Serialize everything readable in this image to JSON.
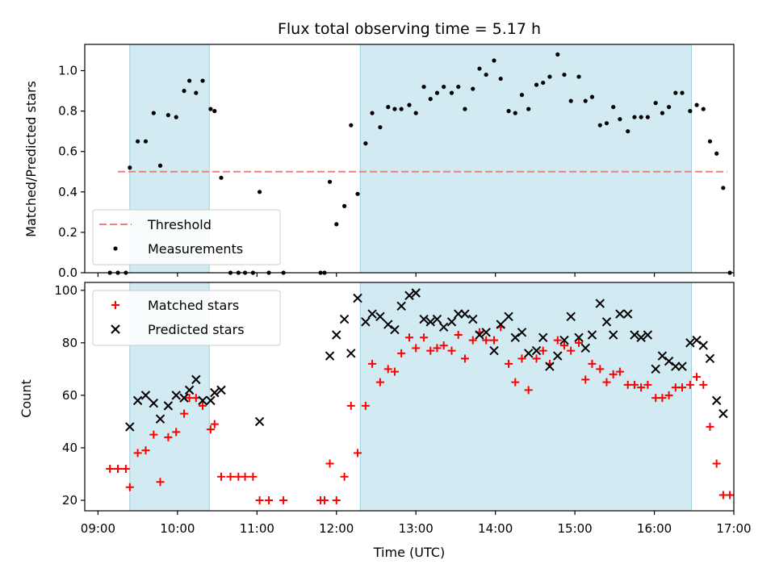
{
  "chart_data": [
    {
      "type": "scatter",
      "title": "Flux total observing time = 5.17 h",
      "xlabel": "",
      "ylabel": "Matched/Predicted stars",
      "xlim": [
        "08:50",
        "17:00"
      ],
      "ylim": [
        0,
        1.13
      ],
      "y_ticks": [
        "0.0",
        "0.2",
        "0.4",
        "0.6",
        "0.8",
        "1.0"
      ],
      "threshold": {
        "label": "Threshold",
        "value": 0.5,
        "x_range": [
          "09:15",
          "16:55"
        ],
        "color": "#f08080",
        "style": "dashed"
      },
      "shaded_intervals": [
        [
          "09:24",
          "10:24"
        ],
        [
          "12:18",
          "16:28"
        ]
      ],
      "shade_color": "#add8e6",
      "legend": {
        "position": "lower-left",
        "entries": [
          "Threshold",
          "Measurements"
        ]
      },
      "series": [
        {
          "name": "Measurements",
          "marker": "dot",
          "color": "#000000",
          "points": [
            [
              "09:09",
              0
            ],
            [
              "09:15",
              0
            ],
            [
              "09:21",
              0
            ],
            [
              "09:24",
              0.52
            ],
            [
              "09:30",
              0.65
            ],
            [
              "09:36",
              0.65
            ],
            [
              "09:42",
              0.79
            ],
            [
              "09:47",
              0.53
            ],
            [
              "09:53",
              0.78
            ],
            [
              "09:59",
              0.77
            ],
            [
              "10:05",
              0.9
            ],
            [
              "10:09",
              0.95
            ],
            [
              "10:14",
              0.89
            ],
            [
              "10:19",
              0.95
            ],
            [
              "10:25",
              0.81
            ],
            [
              "10:28",
              0.8
            ],
            [
              "10:33",
              0.47
            ],
            [
              "10:40",
              0
            ],
            [
              "10:46",
              0
            ],
            [
              "10:51",
              0
            ],
            [
              "10:57",
              0
            ],
            [
              "11:02",
              0.4
            ],
            [
              "11:09",
              0
            ],
            [
              "11:20",
              0
            ],
            [
              "11:48",
              0
            ],
            [
              "11:51",
              0
            ],
            [
              "11:55",
              0.45
            ],
            [
              "12:00",
              0.24
            ],
            [
              "12:06",
              0.33
            ],
            [
              "12:11",
              0.73
            ],
            [
              "12:16",
              0.39
            ],
            [
              "12:22",
              0.64
            ],
            [
              "12:27",
              0.79
            ],
            [
              "12:33",
              0.72
            ],
            [
              "12:39",
              0.82
            ],
            [
              "12:44",
              0.81
            ],
            [
              "12:49",
              0.81
            ],
            [
              "12:55",
              0.83
            ],
            [
              "13:00",
              0.79
            ],
            [
              "13:06",
              0.92
            ],
            [
              "13:11",
              0.86
            ],
            [
              "13:16",
              0.89
            ],
            [
              "13:21",
              0.92
            ],
            [
              "13:27",
              0.89
            ],
            [
              "13:32",
              0.92
            ],
            [
              "13:37",
              0.81
            ],
            [
              "13:43",
              0.91
            ],
            [
              "13:48",
              1.01
            ],
            [
              "13:53",
              0.98
            ],
            [
              "13:59",
              1.05
            ],
            [
              "14:04",
              0.96
            ],
            [
              "14:10",
              0.8
            ],
            [
              "14:15",
              0.79
            ],
            [
              "14:20",
              0.88
            ],
            [
              "14:25",
              0.81
            ],
            [
              "14:31",
              0.93
            ],
            [
              "14:36",
              0.94
            ],
            [
              "14:41",
              0.97
            ],
            [
              "14:47",
              1.08
            ],
            [
              "14:52",
              0.98
            ],
            [
              "14:57",
              0.85
            ],
            [
              "15:03",
              0.97
            ],
            [
              "15:08",
              0.85
            ],
            [
              "15:13",
              0.87
            ],
            [
              "15:19",
              0.73
            ],
            [
              "15:24",
              0.74
            ],
            [
              "15:29",
              0.82
            ],
            [
              "15:34",
              0.76
            ],
            [
              "15:40",
              0.7
            ],
            [
              "15:45",
              0.77
            ],
            [
              "15:50",
              0.77
            ],
            [
              "15:55",
              0.77
            ],
            [
              "16:01",
              0.84
            ],
            [
              "16:06",
              0.79
            ],
            [
              "16:11",
              0.82
            ],
            [
              "16:16",
              0.89
            ],
            [
              "16:21",
              0.89
            ],
            [
              "16:27",
              0.8
            ],
            [
              "16:32",
              0.83
            ],
            [
              "16:37",
              0.81
            ],
            [
              "16:42",
              0.65
            ],
            [
              "16:47",
              0.59
            ],
            [
              "16:52",
              0.42
            ],
            [
              "16:57",
              0
            ]
          ]
        }
      ]
    },
    {
      "type": "scatter",
      "title": "",
      "xlabel": "Time (UTC)",
      "ylabel": "Count",
      "xlim": [
        "08:50",
        "17:00"
      ],
      "ylim": [
        16,
        103
      ],
      "y_ticks": [
        "20",
        "40",
        "60",
        "80",
        "100"
      ],
      "x_ticks": [
        "09:00",
        "10:00",
        "11:00",
        "12:00",
        "13:00",
        "14:00",
        "15:00",
        "16:00",
        "17:00"
      ],
      "shaded_intervals": [
        [
          "09:24",
          "10:24"
        ],
        [
          "12:18",
          "16:28"
        ]
      ],
      "shade_color": "#add8e6",
      "legend": {
        "position": "upper-left",
        "entries": [
          "Matched stars",
          "Predicted stars"
        ]
      },
      "series": [
        {
          "name": "Matched stars",
          "marker": "plus",
          "color": "#ff0000",
          "points": [
            [
              "09:09",
              32
            ],
            [
              "09:15",
              32
            ],
            [
              "09:21",
              32
            ],
            [
              "09:24",
              25
            ],
            [
              "09:30",
              38
            ],
            [
              "09:36",
              39
            ],
            [
              "09:42",
              45
            ],
            [
              "09:47",
              27
            ],
            [
              "09:53",
              44
            ],
            [
              "09:59",
              46
            ],
            [
              "10:05",
              53
            ],
            [
              "10:09",
              59
            ],
            [
              "10:14",
              59
            ],
            [
              "10:19",
              56
            ],
            [
              "10:25",
              47
            ],
            [
              "10:28",
              49
            ],
            [
              "10:33",
              29
            ],
            [
              "10:40",
              29
            ],
            [
              "10:46",
              29
            ],
            [
              "10:51",
              29
            ],
            [
              "10:57",
              29
            ],
            [
              "11:02",
              20
            ],
            [
              "11:09",
              20
            ],
            [
              "11:20",
              20
            ],
            [
              "11:48",
              20
            ],
            [
              "11:51",
              20
            ],
            [
              "11:55",
              34
            ],
            [
              "12:00",
              20
            ],
            [
              "12:06",
              29
            ],
            [
              "12:11",
              56
            ],
            [
              "12:16",
              38
            ],
            [
              "12:22",
              56
            ],
            [
              "12:27",
              72
            ],
            [
              "12:33",
              65
            ],
            [
              "12:39",
              70
            ],
            [
              "12:44",
              69
            ],
            [
              "12:49",
              76
            ],
            [
              "12:55",
              82
            ],
            [
              "13:00",
              78
            ],
            [
              "13:06",
              82
            ],
            [
              "13:11",
              77
            ],
            [
              "13:16",
              78
            ],
            [
              "13:21",
              79
            ],
            [
              "13:27",
              77
            ],
            [
              "13:32",
              83
            ],
            [
              "13:37",
              74
            ],
            [
              "13:43",
              81
            ],
            [
              "13:48",
              84
            ],
            [
              "13:53",
              81
            ],
            [
              "13:59",
              81
            ],
            [
              "14:04",
              86
            ],
            [
              "14:10",
              72
            ],
            [
              "14:15",
              65
            ],
            [
              "14:20",
              74
            ],
            [
              "14:25",
              62
            ],
            [
              "14:31",
              74
            ],
            [
              "14:36",
              77
            ],
            [
              "14:41",
              72
            ],
            [
              "14:47",
              81
            ],
            [
              "14:52",
              79
            ],
            [
              "14:57",
              77
            ],
            [
              "15:03",
              80
            ],
            [
              "15:08",
              66
            ],
            [
              "15:13",
              72
            ],
            [
              "15:19",
              70
            ],
            [
              "15:24",
              65
            ],
            [
              "15:29",
              68
            ],
            [
              "15:34",
              69
            ],
            [
              "15:40",
              64
            ],
            [
              "15:45",
              64
            ],
            [
              "15:50",
              63
            ],
            [
              "15:55",
              64
            ],
            [
              "16:01",
              59
            ],
            [
              "16:06",
              59
            ],
            [
              "16:11",
              60
            ],
            [
              "16:16",
              63
            ],
            [
              "16:21",
              63
            ],
            [
              "16:27",
              64
            ],
            [
              "16:32",
              67
            ],
            [
              "16:37",
              64
            ],
            [
              "16:42",
              48
            ],
            [
              "16:47",
              34
            ],
            [
              "16:52",
              22
            ],
            [
              "16:57",
              22
            ]
          ]
        },
        {
          "name": "Predicted stars",
          "marker": "cross",
          "color": "#000000",
          "points": [
            [
              "09:24",
              48
            ],
            [
              "09:30",
              58
            ],
            [
              "09:36",
              60
            ],
            [
              "09:42",
              57
            ],
            [
              "09:47",
              51
            ],
            [
              "09:53",
              56
            ],
            [
              "09:59",
              60
            ],
            [
              "10:05",
              59
            ],
            [
              "10:09",
              62
            ],
            [
              "10:14",
              66
            ],
            [
              "10:19",
              58
            ],
            [
              "10:25",
              58
            ],
            [
              "10:28",
              61
            ],
            [
              "10:33",
              62
            ],
            [
              "11:02",
              50
            ],
            [
              "11:55",
              75
            ],
            [
              "12:00",
              83
            ],
            [
              "12:06",
              89
            ],
            [
              "12:11",
              76
            ],
            [
              "12:16",
              97
            ],
            [
              "12:22",
              88
            ],
            [
              "12:27",
              91
            ],
            [
              "12:33",
              90
            ],
            [
              "12:39",
              87
            ],
            [
              "12:44",
              85
            ],
            [
              "12:49",
              94
            ],
            [
              "12:55",
              98
            ],
            [
              "13:00",
              99
            ],
            [
              "13:06",
              89
            ],
            [
              "13:11",
              88
            ],
            [
              "13:16",
              89
            ],
            [
              "13:21",
              86
            ],
            [
              "13:27",
              88
            ],
            [
              "13:32",
              91
            ],
            [
              "13:37",
              91
            ],
            [
              "13:43",
              89
            ],
            [
              "13:48",
              83
            ],
            [
              "13:53",
              84
            ],
            [
              "13:59",
              77
            ],
            [
              "14:04",
              87
            ],
            [
              "14:10",
              90
            ],
            [
              "14:15",
              82
            ],
            [
              "14:20",
              84
            ],
            [
              "14:25",
              76
            ],
            [
              "14:31",
              77
            ],
            [
              "14:36",
              82
            ],
            [
              "14:41",
              71
            ],
            [
              "14:47",
              75
            ],
            [
              "14:52",
              81
            ],
            [
              "14:57",
              90
            ],
            [
              "15:03",
              82
            ],
            [
              "15:08",
              78
            ],
            [
              "15:13",
              83
            ],
            [
              "15:19",
              95
            ],
            [
              "15:24",
              88
            ],
            [
              "15:29",
              83
            ],
            [
              "15:34",
              91
            ],
            [
              "15:40",
              91
            ],
            [
              "15:45",
              83
            ],
            [
              "15:50",
              82
            ],
            [
              "15:55",
              83
            ],
            [
              "16:01",
              70
            ],
            [
              "16:06",
              75
            ],
            [
              "16:11",
              73
            ],
            [
              "16:16",
              71
            ],
            [
              "16:21",
              71
            ],
            [
              "16:27",
              80
            ],
            [
              "16:32",
              81
            ],
            [
              "16:37",
              79
            ],
            [
              "16:42",
              74
            ],
            [
              "16:47",
              58
            ],
            [
              "16:52",
              53
            ]
          ]
        }
      ]
    }
  ]
}
